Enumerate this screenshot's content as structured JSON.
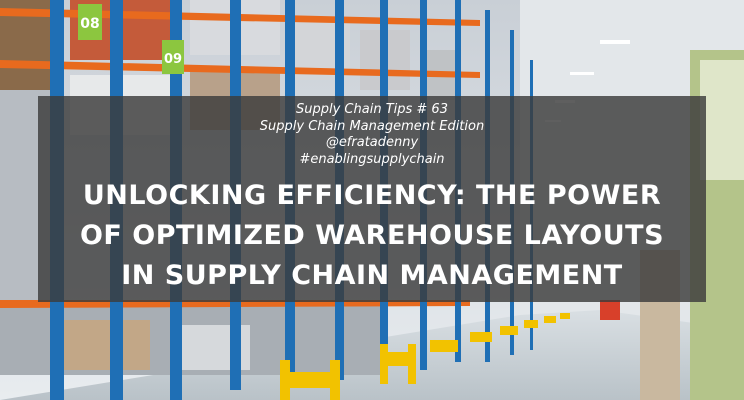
{
  "series_line": "Supply Chain Tips # 63",
  "edition_line": "Supply Chain Management Edition",
  "handle": "@efratadenny",
  "hashtag": "#enablingsupplychain",
  "headline_lines": [
    "UNLOCKING EFFICIENCY: THE POWER",
    "OF OPTIMIZED WAREHOUSE LAYOUTS",
    "IN SUPPLY CHAIN MANAGEMENT"
  ],
  "rack_labels": [
    "08",
    "09"
  ],
  "colors": {
    "rack_upright": "#1f6fb5",
    "rack_beam": "#e86a1e",
    "safety_barrier": "#f2c200",
    "overlay": "#3c3c3c",
    "text": "#ffffff"
  }
}
